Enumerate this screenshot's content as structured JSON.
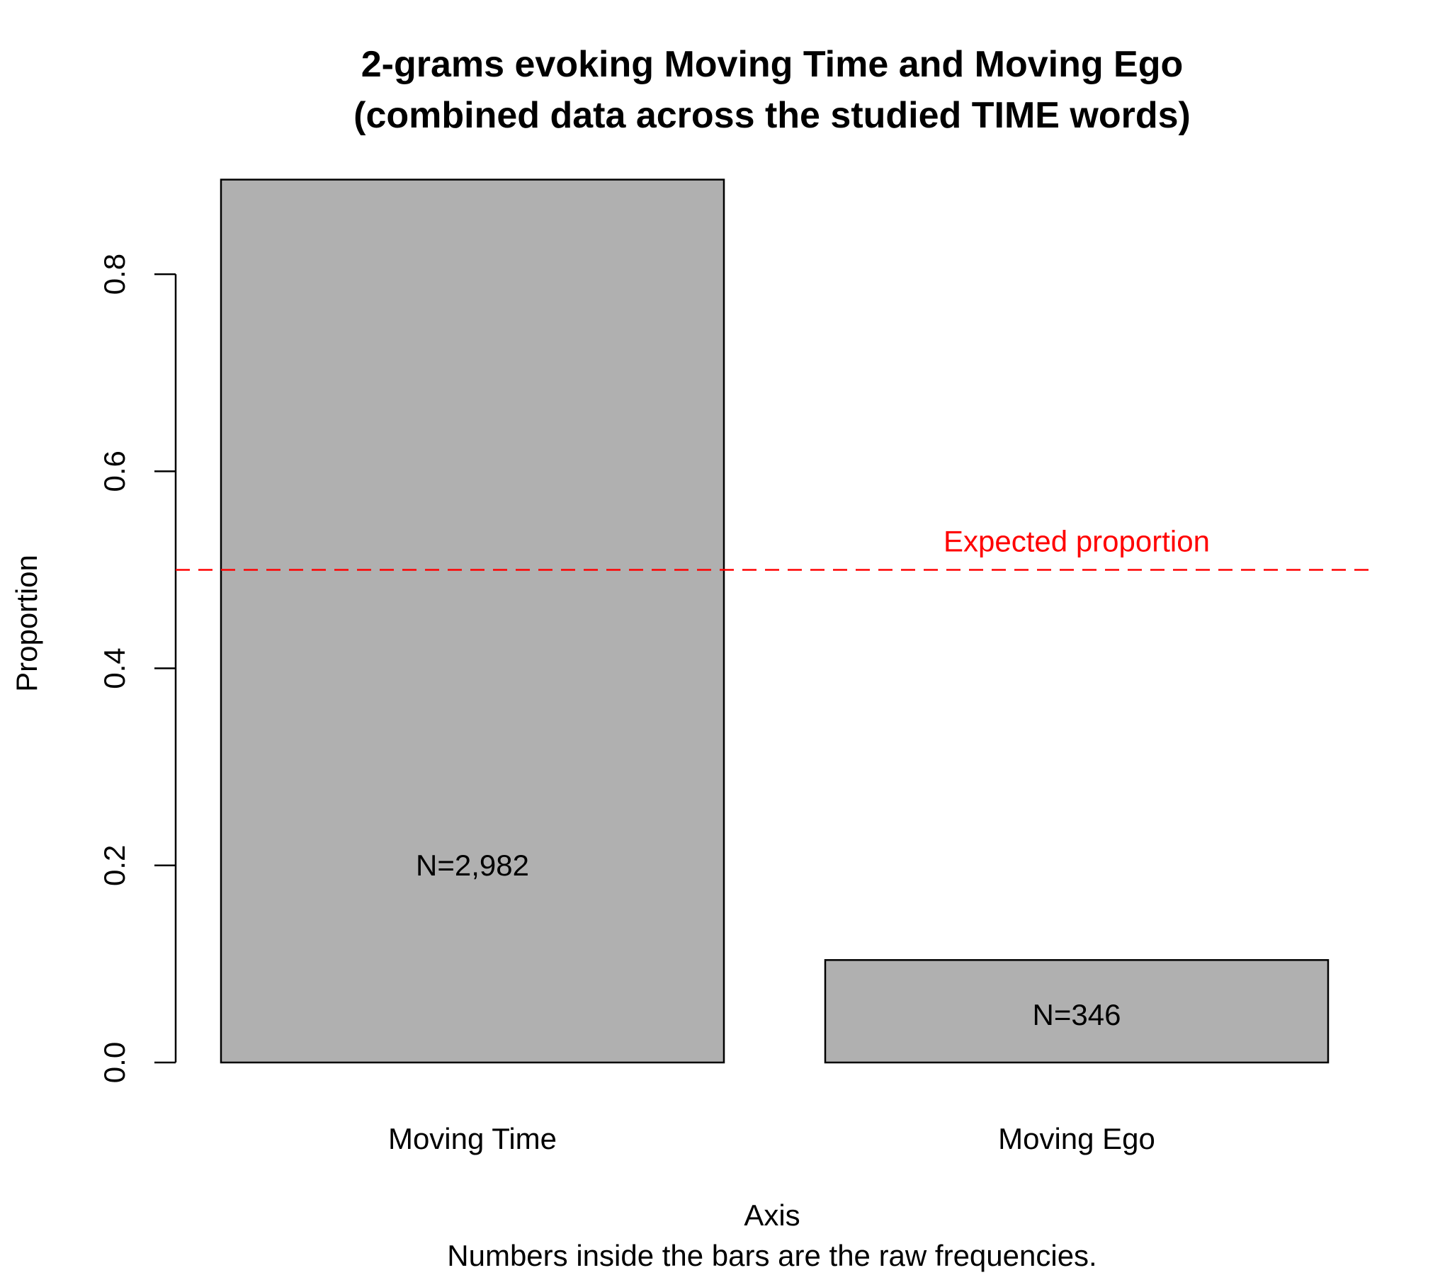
{
  "chart_data": {
    "type": "bar",
    "title_lines": [
      "2-grams evoking Moving Time and Moving Ego",
      "(combined data across the studied TIME words)"
    ],
    "xlabel": "Axis",
    "caption": "Numbers inside the bars are the raw frequencies.",
    "ylabel": "Proportion",
    "categories": [
      "Moving Time",
      "Moving Ego"
    ],
    "values": [
      0.896,
      0.104
    ],
    "bar_labels": [
      "N=2,982",
      "N=346"
    ],
    "bar_label_y": [
      0.2,
      0.048
    ],
    "ylim": [
      0,
      0.9
    ],
    "yticks": [
      0.0,
      0.2,
      0.4,
      0.6,
      0.8
    ],
    "ytick_labels": [
      "0.0",
      "0.2",
      "0.4",
      "0.6",
      "0.8"
    ],
    "reference_line": {
      "value": 0.5,
      "label": "Expected proportion",
      "color": "#ff0000",
      "style": "dashed"
    },
    "bar_fill": "#b0b0b0",
    "bar_stroke": "#000000",
    "grid": false,
    "legend": "none"
  }
}
